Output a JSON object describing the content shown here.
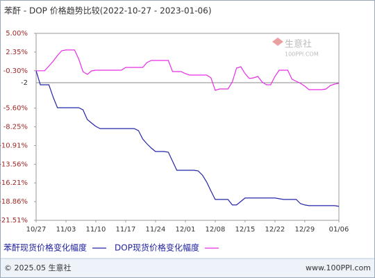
{
  "chart_data": {
    "type": "line",
    "title": "苯酐 - DOP 价格趋势比较(2022-10-27 - 2023-01-06)",
    "categories": [
      "10/27",
      null,
      null,
      null,
      null,
      null,
      null,
      "11/03",
      null,
      null,
      null,
      null,
      null,
      null,
      "11/10",
      null,
      null,
      null,
      null,
      null,
      null,
      "11/17",
      null,
      null,
      null,
      null,
      null,
      null,
      "11/24",
      null,
      null,
      null,
      null,
      null,
      null,
      "12/01",
      null,
      null,
      null,
      null,
      null,
      null,
      "12/08",
      null,
      null,
      null,
      null,
      null,
      null,
      "12/15",
      null,
      null,
      null,
      null,
      null,
      null,
      "12/22",
      null,
      null,
      null,
      null,
      null,
      null,
      "12/29",
      null,
      null,
      null,
      null,
      null,
      null,
      null,
      "01/06"
    ],
    "series": [
      {
        "name": "苯酐现货价格变化幅度",
        "color": "#2424a8",
        "values": [
          -0.3,
          -2.29,
          -2.29,
          -2.29,
          -4.06,
          -5.54,
          -5.54,
          -5.54,
          -5.54,
          -5.54,
          -5.54,
          -5.84,
          -7.22,
          -7.71,
          -8.2,
          -8.5,
          -8.5,
          -8.5,
          -8.5,
          -8.5,
          -8.5,
          -8.5,
          -8.5,
          -8.5,
          -8.79,
          -9.98,
          -10.67,
          -11.26,
          -11.75,
          -11.75,
          -11.75,
          -11.85,
          -13.13,
          -14.41,
          -14.41,
          -14.41,
          -14.41,
          -14.41,
          -14.5,
          -15.1,
          -16.08,
          -17.36,
          -18.55,
          -18.55,
          -18.55,
          -18.55,
          -19.33,
          -19.33,
          -18.84,
          -18.35,
          -18.35,
          -18.35,
          -18.35,
          -18.35,
          -18.35,
          -18.35,
          -18.35,
          -18.45,
          -18.55,
          -18.55,
          -18.55,
          -18.55,
          -19.14,
          -19.33,
          -19.43,
          -19.43,
          -19.43,
          -19.43,
          -19.43,
          -19.43,
          -19.43,
          -19.53
        ]
      },
      {
        "name": "DOP现货价格变化幅度",
        "color": "#e62ee6",
        "values": [
          -0.3,
          -0.3,
          -0.3,
          0.37,
          1.06,
          1.85,
          2.54,
          2.64,
          2.64,
          2.64,
          1.35,
          -0.42,
          -0.81,
          -0.32,
          -0.22,
          -0.22,
          -0.22,
          -0.22,
          -0.22,
          -0.22,
          -0.22,
          0.17,
          0.17,
          0.17,
          0.17,
          0.17,
          0.86,
          1.16,
          1.16,
          1.16,
          1.16,
          1.16,
          -0.42,
          -0.42,
          -0.42,
          -0.71,
          -0.91,
          -0.91,
          -0.91,
          -0.91,
          -0.91,
          -1.31,
          -3.08,
          -2.88,
          -2.88,
          -2.88,
          -1.9,
          0.07,
          0.27,
          -0.71,
          -1.4,
          -1.31,
          -1.11,
          -1.9,
          -2.29,
          -2.29,
          -1.11,
          -0.22,
          -0.22,
          -0.22,
          -1.5,
          -1.8,
          -2.09,
          -2.49,
          -2.98,
          -2.98,
          -2.98,
          -2.98,
          -2.88,
          -2.39,
          -2.19,
          -2.09
        ]
      }
    ],
    "ylim": [
      -21.51,
      5
    ],
    "yticks": [
      {
        "value": 5,
        "label": "5.00%"
      },
      {
        "value": 2.35,
        "label": "2.35%"
      },
      {
        "value": -0.3,
        "label": "-0.30%"
      },
      {
        "value": -5.6,
        "label": "-5.60%"
      },
      {
        "value": -8.25,
        "label": "-8.25%"
      },
      {
        "value": -10.91,
        "label": "-10.91%"
      },
      {
        "value": -13.56,
        "label": "-13.56%"
      },
      {
        "value": -16.21,
        "label": "-16.21%"
      },
      {
        "value": -18.86,
        "label": "-18.86%"
      },
      {
        "value": -21.51,
        "label": "-21.51%"
      }
    ],
    "reference_line": -2,
    "grid": false
  },
  "watermark": {
    "name": "生意社",
    "site": "100PPI.COM"
  },
  "footer": {
    "left": "© 2025.05 生意社",
    "right": "www.100PPI.com"
  }
}
